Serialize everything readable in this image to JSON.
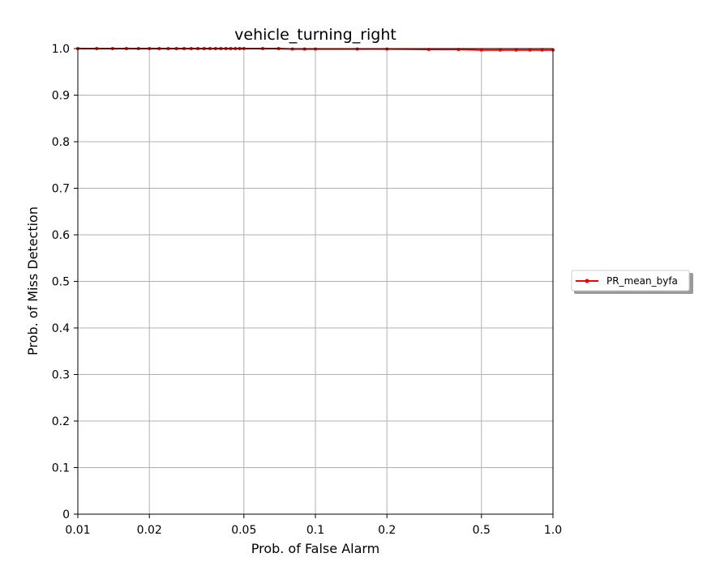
{
  "chart_data": {
    "type": "line",
    "title": "vehicle_turning_right",
    "xlabel": "Prob. of False Alarm",
    "ylabel": "Prob. of Miss Detection",
    "xscale": "log",
    "xlim": [
      0.01,
      1.0
    ],
    "ylim": [
      0,
      1.0
    ],
    "grid": true,
    "legend_position": "outside-right",
    "x_ticks": [
      0.01,
      0.02,
      0.05,
      0.1,
      0.2,
      0.5,
      1.0
    ],
    "x_tick_labels": [
      "0.01",
      "0.02",
      "0.05",
      "0.1",
      "0.2",
      "0.5",
      "1.0"
    ],
    "y_ticks": [
      0,
      0.1,
      0.2,
      0.3,
      0.4,
      0.5,
      0.6,
      0.7,
      0.8,
      0.9,
      1.0
    ],
    "y_tick_labels": [
      "0",
      "0.1",
      "0.2",
      "0.3",
      "0.4",
      "0.5",
      "0.6",
      "0.7",
      "0.8",
      "0.9",
      "1.0"
    ],
    "series": [
      {
        "name": "PR_mean_byfa",
        "color": "#ff0000",
        "marker": "dot",
        "x": [
          0.01,
          0.012,
          0.014,
          0.016,
          0.018,
          0.02,
          0.022,
          0.024,
          0.026,
          0.028,
          0.03,
          0.032,
          0.034,
          0.036,
          0.038,
          0.04,
          0.042,
          0.044,
          0.046,
          0.048,
          0.05,
          0.06,
          0.07,
          0.08,
          0.09,
          0.1,
          0.15,
          0.2,
          0.3,
          0.4,
          0.5,
          0.6,
          0.7,
          0.8,
          0.9,
          1.0
        ],
        "y": [
          1.0,
          1.0,
          1.0,
          1.0,
          1.0,
          1.0,
          1.0,
          1.0,
          1.0,
          1.0,
          1.0,
          1.0,
          1.0,
          1.0,
          1.0,
          1.0,
          1.0,
          1.0,
          1.0,
          1.0,
          1.0,
          1.0,
          1.0,
          0.999,
          0.999,
          0.999,
          0.999,
          0.999,
          0.998,
          0.998,
          0.997,
          0.997,
          0.997,
          0.997,
          0.997,
          0.997
        ]
      }
    ]
  }
}
